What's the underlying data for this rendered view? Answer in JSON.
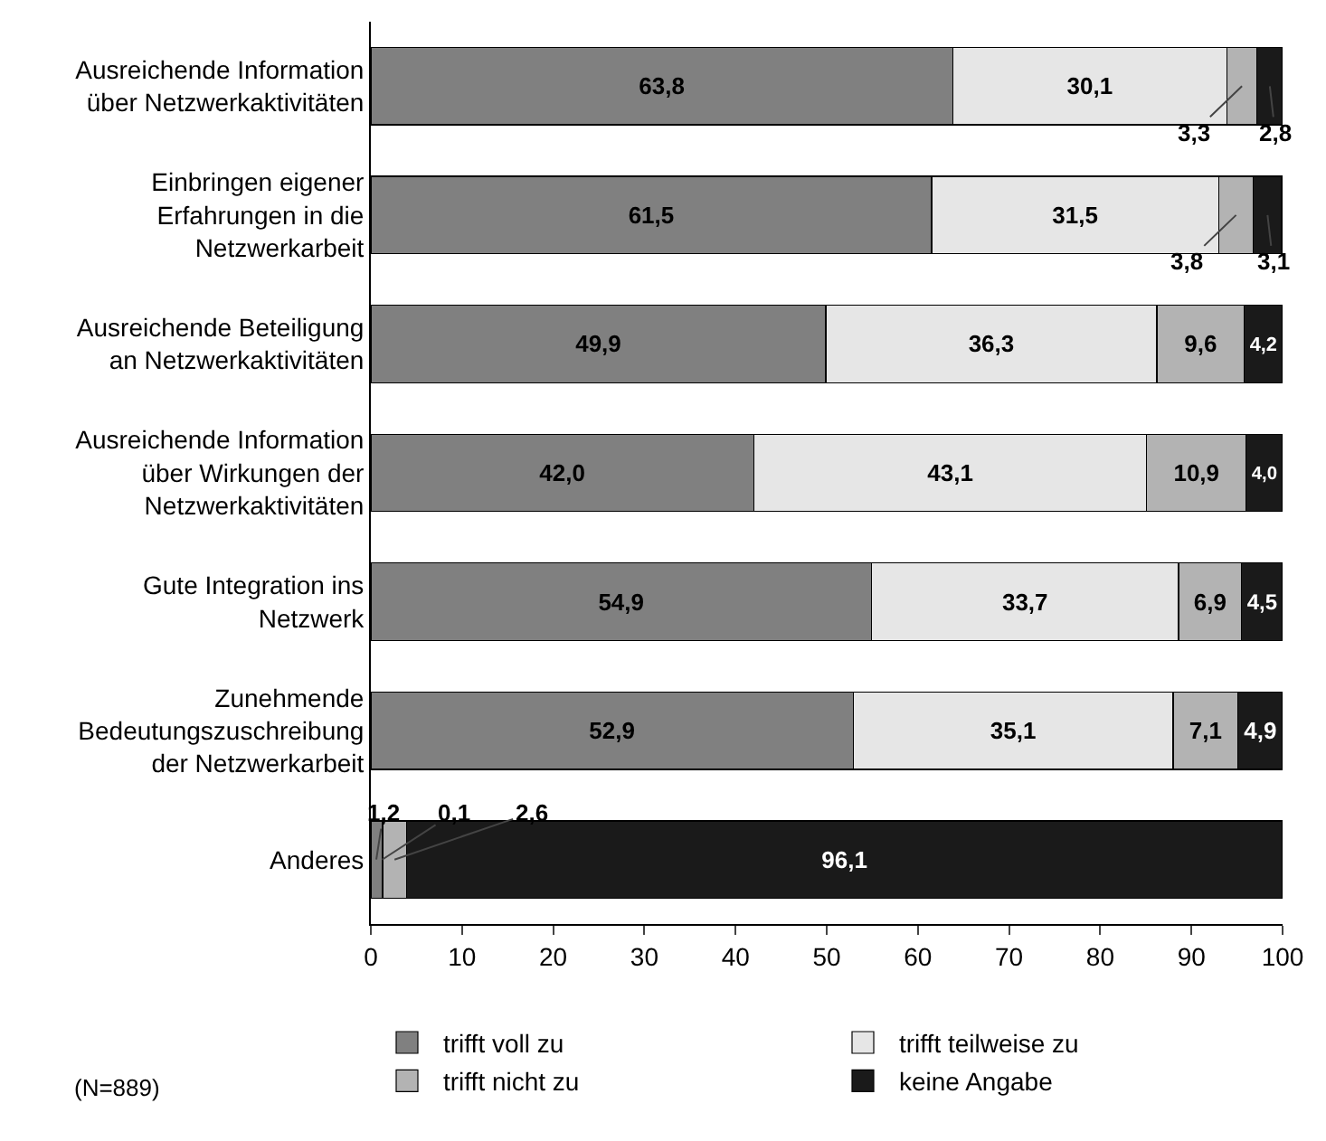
{
  "chart_data": {
    "type": "bar",
    "orientation": "horizontal",
    "stacked": true,
    "categories": [
      "Ausreichende Information über Netzwerkaktivitäten",
      "Einbringen eigener Erfahrungen in die Netzwerkarbeit",
      "Ausreichende Beteiligung an Netzwerkaktivitäten",
      "Ausreichende Information über Wirkungen der Netzwerkaktivitäten",
      "Gute Integration ins Netzwerk",
      "Zunehmende Bedeutungszuschreibung der Netzwerkarbeit",
      "Anderes"
    ],
    "series": [
      {
        "name": "trifft voll zu",
        "color": "#808080",
        "values": [
          63.8,
          61.5,
          49.9,
          42.0,
          54.9,
          52.9,
          1.2
        ],
        "value_labels": [
          "63,8",
          "61,5",
          "49,9",
          "42,0",
          "54,9",
          "52,9",
          "1,2"
        ]
      },
      {
        "name": "trifft teilweise zu",
        "color": "#e6e6e6",
        "values": [
          30.1,
          31.5,
          36.3,
          43.1,
          33.7,
          35.1,
          0.1
        ],
        "value_labels": [
          "30,1",
          "31,5",
          "36,3",
          "43,1",
          "33,7",
          "35,1",
          "0,1"
        ]
      },
      {
        "name": "trifft nicht zu",
        "color": "#b3b3b3",
        "values": [
          3.3,
          3.8,
          9.6,
          10.9,
          6.9,
          7.1,
          2.6
        ],
        "value_labels": [
          "3,3",
          "3,8",
          "9,6",
          "10,9",
          "6,9",
          "7,1",
          "2,6"
        ]
      },
      {
        "name": "keine Angabe",
        "color": "#1a1a1a",
        "values": [
          2.8,
          3.1,
          4.2,
          4.0,
          4.5,
          4.9,
          96.1
        ],
        "value_labels": [
          "2,8",
          "3,1",
          "4,2",
          "4,0",
          "4,5",
          "4,9",
          "96,1"
        ]
      }
    ],
    "xlim": [
      0,
      100
    ],
    "xticks": [
      0,
      10,
      20,
      30,
      40,
      50,
      60,
      70,
      80,
      90,
      100
    ],
    "grid": false,
    "legend": "bottom",
    "annotations": [
      "(N=889)"
    ]
  }
}
